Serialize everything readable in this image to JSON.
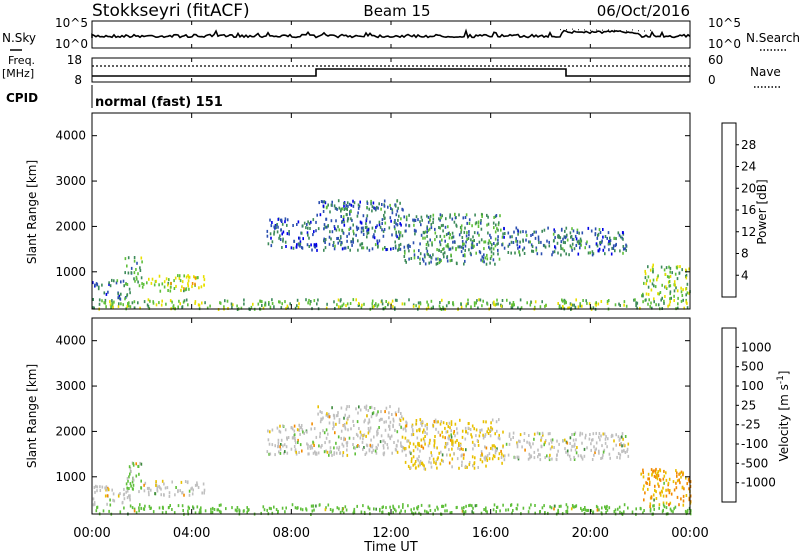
{
  "header": {
    "station": "Stokkseyri (fitACF)",
    "beam": "Beam 15",
    "date": "06/Oct/2016"
  },
  "nsky_panel": {
    "left_label": "N.Sky",
    "right_label": "N.Search",
    "y_ticks_left": [
      "10^5",
      "10^0"
    ],
    "y_ticks_right": [
      "10^5",
      "10^0"
    ]
  },
  "freq_panel": {
    "left_label_line1": "Freq.",
    "left_label_line2": "[MHz]",
    "right_label": "Nave",
    "y_ticks_left": [
      "18",
      "8"
    ],
    "y_ticks_right": [
      "60",
      "0"
    ]
  },
  "cpid": {
    "label": "CPID",
    "program": "normal (fast) 151"
  },
  "x_axis": {
    "tick_labels": [
      "00:00",
      "04:00",
      "08:00",
      "12:00",
      "16:00",
      "20:00",
      "00:00"
    ],
    "label": "Time UT"
  },
  "chart_data": [
    {
      "type": "heatmap",
      "name": "power",
      "xlabel": "Time UT",
      "ylabel": "Slant Range [km]",
      "xlim": [
        0,
        24
      ],
      "ylim": [
        180,
        4500
      ],
      "y_ticks": [
        1000,
        2000,
        3000,
        4000
      ],
      "colorbar": {
        "label": "Power [dB]",
        "tick_labels": [
          "4",
          "8",
          "12",
          "16",
          "20",
          "24",
          "28"
        ],
        "colors": [
          "#0000e6",
          "#2b4fb0",
          "#3d8a5a",
          "#5fbf3a",
          "#e8e000",
          "#f29200",
          "#f26a00",
          "#e60000"
        ]
      },
      "echo_regions": [
        {
          "t": [
            0.0,
            1.5
          ],
          "r": [
            400,
            850
          ],
          "value": 8
        },
        {
          "t": [
            1.3,
            2.0
          ],
          "r": [
            700,
            1350
          ],
          "value": 12
        },
        {
          "t": [
            2.0,
            4.5
          ],
          "r": [
            600,
            950
          ],
          "value": 16
        },
        {
          "t": [
            7.0,
            9.0
          ],
          "r": [
            1500,
            2200
          ],
          "value": 6
        },
        {
          "t": [
            9.0,
            12.5
          ],
          "r": [
            1500,
            2600
          ],
          "value": 8
        },
        {
          "t": [
            12.5,
            16.5
          ],
          "r": [
            1200,
            2300
          ],
          "value": 10
        },
        {
          "t": [
            16.5,
            21.5
          ],
          "r": [
            1400,
            2000
          ],
          "value": 8
        },
        {
          "t": [
            22.0,
            24.0
          ],
          "r": [
            400,
            1200
          ],
          "value": 14
        },
        {
          "t": [
            0.0,
            24.0
          ],
          "r": [
            200,
            420
          ],
          "value": 14
        }
      ]
    },
    {
      "type": "heatmap",
      "name": "velocity",
      "xlabel": "Time UT",
      "ylabel": "Slant Range [km]",
      "xlim": [
        0,
        24
      ],
      "ylim": [
        180,
        4500
      ],
      "y_ticks": [
        1000,
        2000,
        3000,
        4000
      ],
      "colorbar": {
        "label_main": "Velocity [m s",
        "label_sup": "-1",
        "label_end": "]",
        "tick_labels": [
          "1000",
          "500",
          "100",
          "25",
          "-25",
          "-100",
          "-500",
          "-1000"
        ],
        "colors": [
          "#1f3fbf",
          "#3a6bd0",
          "#3d8a3d",
          "#5fbf3a",
          "#c0c0c0",
          "#e8c000",
          "#f28a00",
          "#f24a00",
          "#e60000"
        ]
      },
      "echo_regions": [
        {
          "t": [
            0.0,
            1.5
          ],
          "r": [
            400,
            850
          ],
          "value": 0
        },
        {
          "t": [
            1.3,
            2.0
          ],
          "r": [
            700,
            1350
          ],
          "value": 40
        },
        {
          "t": [
            2.0,
            4.5
          ],
          "r": [
            600,
            950
          ],
          "value": 0
        },
        {
          "t": [
            7.0,
            9.0
          ],
          "r": [
            1500,
            2200
          ],
          "value": 0
        },
        {
          "t": [
            9.0,
            12.5
          ],
          "r": [
            1500,
            2600
          ],
          "value": 0
        },
        {
          "t": [
            12.5,
            16.5
          ],
          "r": [
            1200,
            2300
          ],
          "value": -30
        },
        {
          "t": [
            16.5,
            21.5
          ],
          "r": [
            1400,
            2000
          ],
          "value": 0
        },
        {
          "t": [
            22.0,
            24.0
          ],
          "r": [
            400,
            1200
          ],
          "value": -100
        },
        {
          "t": [
            0.0,
            24.0
          ],
          "r": [
            200,
            420
          ],
          "value": 60
        }
      ]
    }
  ]
}
